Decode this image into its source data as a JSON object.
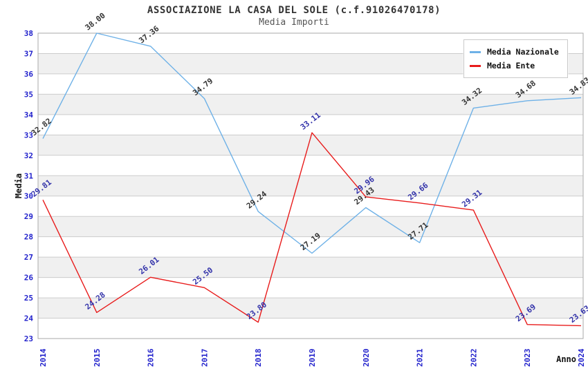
{
  "title": "ASSOCIAZIONE LA CASA DEL SOLE (c.f.91026470178)",
  "subtitle": "Media Importi",
  "chart_data": {
    "type": "line",
    "x": [
      2014,
      2015,
      2016,
      2017,
      2018,
      2019,
      2020,
      2021,
      2022,
      2023,
      2024
    ],
    "series": [
      {
        "name": "Media Nazionale",
        "color": "#6eb1e7",
        "label_color": "#333333",
        "values": [
          32.82,
          38.0,
          37.36,
          34.79,
          29.24,
          27.19,
          29.43,
          27.71,
          34.32,
          34.68,
          34.83
        ]
      },
      {
        "name": "Media Ente",
        "color": "#e81b1b",
        "label_color": "#3333aa",
        "values": [
          29.81,
          24.28,
          26.01,
          25.5,
          23.8,
          33.11,
          29.96,
          29.66,
          29.31,
          23.69,
          23.63
        ]
      }
    ],
    "xlabel": "Anno",
    "ylabel": "Media",
    "ylim": [
      23,
      38
    ],
    "y_ticks": [
      23,
      24,
      25,
      26,
      27,
      28,
      29,
      30,
      31,
      32,
      33,
      34,
      35,
      36,
      37,
      38
    ],
    "grid": true,
    "legend_position": "top-right",
    "colors": {
      "tick_label": "#2222cc",
      "grid": "#cccccc",
      "band": "#f0f0f0",
      "border": "#aaaaaa"
    }
  }
}
